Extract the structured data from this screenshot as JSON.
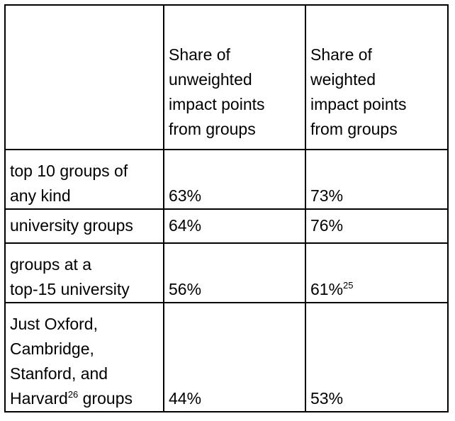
{
  "table": {
    "header": {
      "col1": "",
      "col2_lines": [
        "Share of",
        "unweighted",
        "impact points",
        "from groups"
      ],
      "col3_lines": [
        "Share of",
        "weighted",
        "impact points",
        "from groups"
      ]
    },
    "rows": [
      {
        "label_lines": [
          "top 10 groups of",
          "any kind"
        ],
        "unweighted": "63%",
        "weighted": "73%",
        "weighted_footnote": ""
      },
      {
        "label_lines": [
          "university groups"
        ],
        "unweighted": "64%",
        "weighted": "76%",
        "weighted_footnote": ""
      },
      {
        "label_lines": [
          "groups at a",
          "top-15 university"
        ],
        "unweighted": "56%",
        "weighted": "61%",
        "weighted_footnote": "25"
      },
      {
        "label_lines": [
          "Just Oxford,",
          "Cambridge,",
          "Stanford, and"
        ],
        "label_last_prefix": "Harvard",
        "label_last_footnote": "26",
        "label_last_suffix": " groups",
        "unweighted": "44%",
        "weighted": "53%",
        "weighted_footnote": ""
      }
    ]
  }
}
